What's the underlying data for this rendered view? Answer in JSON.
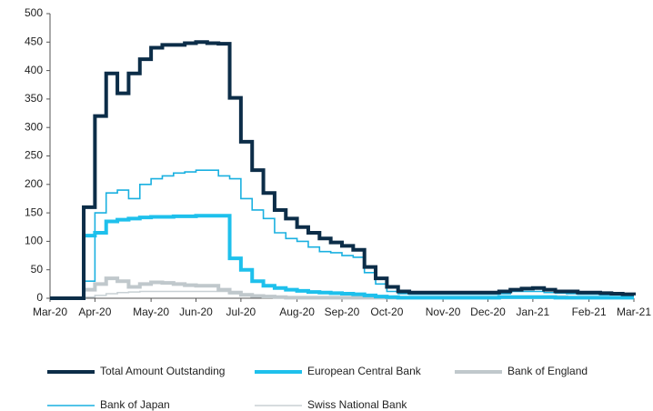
{
  "chart_data": {
    "type": "line",
    "step": true,
    "categories": [
      "Mar-20",
      null,
      null,
      null,
      "Apr-20",
      null,
      null,
      null,
      null,
      "May-20",
      null,
      null,
      null,
      "Jun-20",
      null,
      null,
      null,
      "Jul-20",
      null,
      null,
      null,
      null,
      "Aug-20",
      null,
      null,
      null,
      "Sep-20",
      null,
      null,
      null,
      "Oct-20",
      null,
      null,
      null,
      null,
      "Nov-20",
      null,
      null,
      null,
      "Dec-20",
      null,
      null,
      null,
      "Jan-21",
      null,
      null,
      null,
      null,
      "Feb-21",
      null,
      null,
      null,
      "Mar-21"
    ],
    "series": [
      {
        "name": "Total Amount Outstanding",
        "color": "#0c2d48",
        "values": [
          0,
          0,
          0,
          160,
          320,
          395,
          360,
          395,
          420,
          440,
          445,
          445,
          448,
          450,
          448,
          447,
          352,
          275,
          225,
          185,
          155,
          140,
          125,
          115,
          105,
          98,
          92,
          85,
          55,
          35,
          20,
          12,
          10,
          10,
          10,
          10,
          10,
          10,
          10,
          10,
          12,
          15,
          17,
          18,
          15,
          12,
          12,
          10,
          10,
          9,
          8,
          7,
          5
        ]
      },
      {
        "name": "European Central Bank",
        "color": "#1ec0ec",
        "values": [
          0,
          0,
          0,
          110,
          115,
          135,
          138,
          140,
          142,
          143,
          143,
          144,
          144,
          145,
          145,
          145,
          70,
          50,
          30,
          22,
          18,
          15,
          13,
          11,
          10,
          9,
          8,
          7,
          5,
          3,
          2,
          1,
          1,
          1,
          1,
          1,
          1,
          1,
          1,
          1,
          2,
          2,
          2,
          2,
          2,
          1,
          1,
          1,
          1,
          1,
          1,
          1,
          1
        ]
      },
      {
        "name": "Bank of England",
        "color": "#c0c8cc",
        "values": [
          0,
          0,
          0,
          15,
          25,
          35,
          30,
          20,
          25,
          28,
          27,
          25,
          23,
          22,
          22,
          15,
          10,
          6,
          4,
          3,
          2,
          1,
          1,
          1,
          1,
          1,
          1,
          1,
          1,
          1,
          1,
          1,
          1,
          1,
          1,
          1,
          1,
          1,
          1,
          1,
          2,
          2,
          2,
          2,
          2,
          2,
          1,
          1,
          1,
          1,
          1,
          1,
          1
        ]
      },
      {
        "name": "Bank of Japan",
        "color": "#1ab0e0",
        "values": [
          0,
          0,
          0,
          30,
          150,
          185,
          190,
          175,
          200,
          210,
          215,
          220,
          222,
          225,
          225,
          215,
          210,
          175,
          155,
          140,
          115,
          105,
          100,
          90,
          82,
          80,
          75,
          72,
          45,
          25,
          12,
          8,
          7,
          7,
          7,
          7,
          7,
          7,
          7,
          7,
          8,
          12,
          12,
          12,
          10,
          9,
          8,
          7,
          7,
          6,
          6,
          5,
          5
        ]
      },
      {
        "name": "Swiss National Bank",
        "color": "#c8d0d4",
        "values": [
          0,
          0,
          0,
          2,
          5,
          8,
          10,
          11,
          12,
          12,
          12,
          12,
          12,
          12,
          12,
          12,
          8,
          5,
          3,
          2,
          1,
          1,
          1,
          1,
          1,
          1,
          1,
          1,
          1,
          1,
          0,
          0,
          0,
          0,
          0,
          0,
          0,
          0,
          0,
          0,
          0,
          0,
          0,
          0,
          0,
          0,
          0,
          0,
          0,
          0,
          0,
          0,
          0
        ]
      }
    ],
    "ylim": [
      0,
      500
    ],
    "yticks": [
      0,
      50,
      100,
      150,
      200,
      250,
      300,
      350,
      400,
      450,
      500
    ],
    "grid": false
  }
}
